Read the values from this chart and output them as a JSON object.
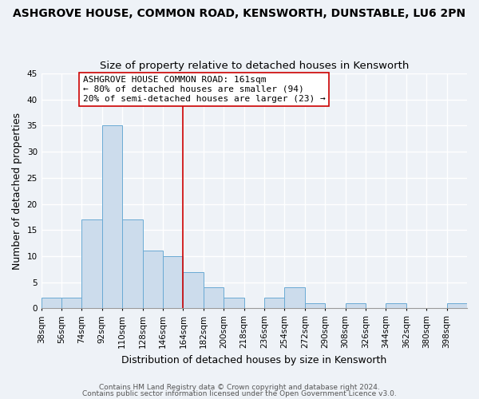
{
  "title": "ASHGROVE HOUSE, COMMON ROAD, KENSWORTH, DUNSTABLE, LU6 2PN",
  "subtitle": "Size of property relative to detached houses in Kensworth",
  "xlabel": "Distribution of detached houses by size in Kensworth",
  "ylabel": "Number of detached properties",
  "bin_labels": [
    "38sqm",
    "56sqm",
    "74sqm",
    "92sqm",
    "110sqm",
    "128sqm",
    "146sqm",
    "164sqm",
    "182sqm",
    "200sqm",
    "218sqm",
    "236sqm",
    "254sqm",
    "272sqm",
    "290sqm",
    "308sqm",
    "326sqm",
    "344sqm",
    "362sqm",
    "380sqm",
    "398sqm"
  ],
  "bar_values": [
    2,
    2,
    17,
    35,
    17,
    11,
    10,
    7,
    4,
    2,
    0,
    2,
    4,
    1,
    0,
    1,
    0,
    1,
    0,
    0,
    1
  ],
  "bar_color": "#ccdcec",
  "bar_edge_color": "#6aaad4",
  "bin_edges": [
    38,
    56,
    74,
    92,
    110,
    128,
    146,
    164,
    182,
    200,
    218,
    236,
    254,
    272,
    290,
    308,
    326,
    344,
    362,
    380,
    398,
    416
  ],
  "ref_line_color": "#cc0000",
  "ref_line_x": 164,
  "annotation_line1": "ASHGROVE HOUSE COMMON ROAD: 161sqm",
  "annotation_line2": "← 80% of detached houses are smaller (94)",
  "annotation_line3": "20% of semi-detached houses are larger (23) →",
  "ylim": [
    0,
    45
  ],
  "yticks": [
    0,
    5,
    10,
    15,
    20,
    25,
    30,
    35,
    40,
    45
  ],
  "footer1": "Contains HM Land Registry data © Crown copyright and database right 2024.",
  "footer2": "Contains public sector information licensed under the Open Government Licence v3.0.",
  "background_color": "#eef2f7",
  "grid_color": "#ffffff",
  "title_fontsize": 10,
  "subtitle_fontsize": 9.5,
  "axis_label_fontsize": 9,
  "tick_fontsize": 7.5,
  "annotation_fontsize": 8,
  "footer_fontsize": 6.5
}
